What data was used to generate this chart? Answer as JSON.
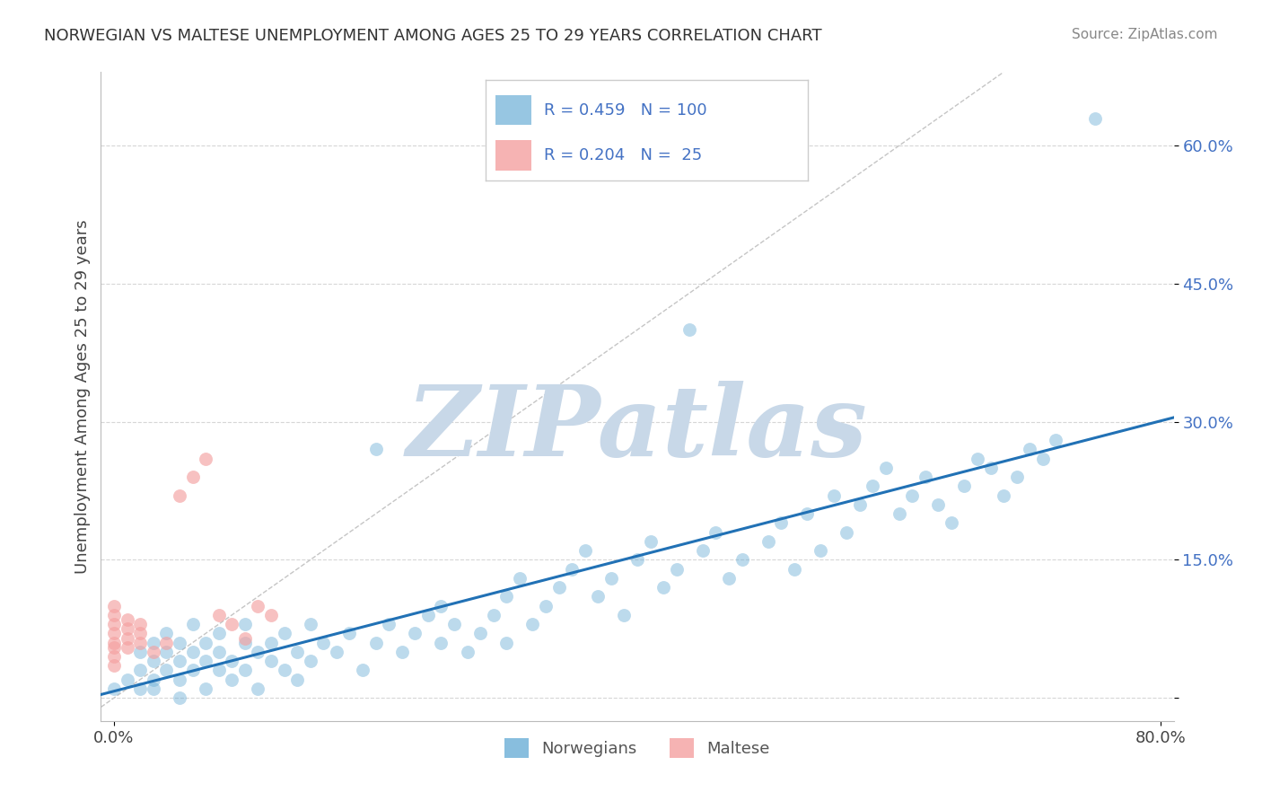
{
  "title": "NORWEGIAN VS MALTESE UNEMPLOYMENT AMONG AGES 25 TO 29 YEARS CORRELATION CHART",
  "source": "Source: ZipAtlas.com",
  "ylabel": "Unemployment Among Ages 25 to 29 years",
  "xlim": [
    -0.01,
    0.81
  ],
  "ylim": [
    -0.025,
    0.68
  ],
  "xtick_positions": [
    0.0,
    0.8
  ],
  "xticklabels": [
    "0.0%",
    "80.0%"
  ],
  "ytick_positions": [
    0.0,
    0.15,
    0.3,
    0.45,
    0.6
  ],
  "ytick_labels": [
    "",
    "15.0%",
    "30.0%",
    "45.0%",
    "60.0%"
  ],
  "R_norwegian": 0.459,
  "N_norwegian": 100,
  "R_maltese": 0.204,
  "N_maltese": 25,
  "norwegian_color": "#6baed6",
  "maltese_color": "#f4a0a0",
  "regression_color": "#2171b5",
  "reference_line_color": "#bbbbbb",
  "background_color": "#ffffff",
  "watermark_text": "ZIPatlas",
  "watermark_color": "#c8d8e8",
  "legend_label_nor": "Norwegians",
  "legend_label_mal": "Maltese",
  "norwegian_x": [
    0.0,
    0.01,
    0.02,
    0.02,
    0.02,
    0.03,
    0.03,
    0.03,
    0.03,
    0.04,
    0.04,
    0.04,
    0.05,
    0.05,
    0.05,
    0.05,
    0.06,
    0.06,
    0.06,
    0.07,
    0.07,
    0.07,
    0.08,
    0.08,
    0.08,
    0.09,
    0.09,
    0.1,
    0.1,
    0.1,
    0.11,
    0.11,
    0.12,
    0.12,
    0.13,
    0.13,
    0.14,
    0.14,
    0.15,
    0.15,
    0.16,
    0.17,
    0.18,
    0.19,
    0.2,
    0.2,
    0.21,
    0.22,
    0.23,
    0.24,
    0.25,
    0.25,
    0.26,
    0.27,
    0.28,
    0.29,
    0.3,
    0.3,
    0.31,
    0.32,
    0.33,
    0.34,
    0.35,
    0.36,
    0.37,
    0.38,
    0.39,
    0.4,
    0.41,
    0.42,
    0.43,
    0.44,
    0.45,
    0.46,
    0.47,
    0.48,
    0.5,
    0.51,
    0.52,
    0.53,
    0.54,
    0.55,
    0.56,
    0.57,
    0.58,
    0.59,
    0.6,
    0.61,
    0.62,
    0.63,
    0.64,
    0.65,
    0.66,
    0.67,
    0.68,
    0.69,
    0.7,
    0.71,
    0.72,
    0.75
  ],
  "norwegian_y": [
    0.01,
    0.02,
    0.01,
    0.03,
    0.05,
    0.02,
    0.04,
    0.06,
    0.01,
    0.03,
    0.05,
    0.07,
    0.02,
    0.04,
    0.06,
    0.0,
    0.03,
    0.05,
    0.08,
    0.04,
    0.06,
    0.01,
    0.03,
    0.05,
    0.07,
    0.02,
    0.04,
    0.06,
    0.08,
    0.03,
    0.05,
    0.01,
    0.04,
    0.06,
    0.03,
    0.07,
    0.05,
    0.02,
    0.04,
    0.08,
    0.06,
    0.05,
    0.07,
    0.03,
    0.27,
    0.06,
    0.08,
    0.05,
    0.07,
    0.09,
    0.06,
    0.1,
    0.08,
    0.05,
    0.07,
    0.09,
    0.11,
    0.06,
    0.13,
    0.08,
    0.1,
    0.12,
    0.14,
    0.16,
    0.11,
    0.13,
    0.09,
    0.15,
    0.17,
    0.12,
    0.14,
    0.4,
    0.16,
    0.18,
    0.13,
    0.15,
    0.17,
    0.19,
    0.14,
    0.2,
    0.16,
    0.22,
    0.18,
    0.21,
    0.23,
    0.25,
    0.2,
    0.22,
    0.24,
    0.21,
    0.19,
    0.23,
    0.26,
    0.25,
    0.22,
    0.24,
    0.27,
    0.26,
    0.28,
    0.63
  ],
  "maltese_x": [
    0.0,
    0.0,
    0.0,
    0.0,
    0.0,
    0.0,
    0.0,
    0.0,
    0.01,
    0.01,
    0.01,
    0.01,
    0.02,
    0.02,
    0.02,
    0.03,
    0.04,
    0.05,
    0.06,
    0.07,
    0.08,
    0.09,
    0.1,
    0.11,
    0.12
  ],
  "maltese_y": [
    0.055,
    0.07,
    0.08,
    0.09,
    0.1,
    0.06,
    0.035,
    0.045,
    0.055,
    0.065,
    0.075,
    0.085,
    0.06,
    0.07,
    0.08,
    0.05,
    0.06,
    0.22,
    0.24,
    0.26,
    0.09,
    0.08,
    0.065,
    0.1,
    0.09
  ]
}
